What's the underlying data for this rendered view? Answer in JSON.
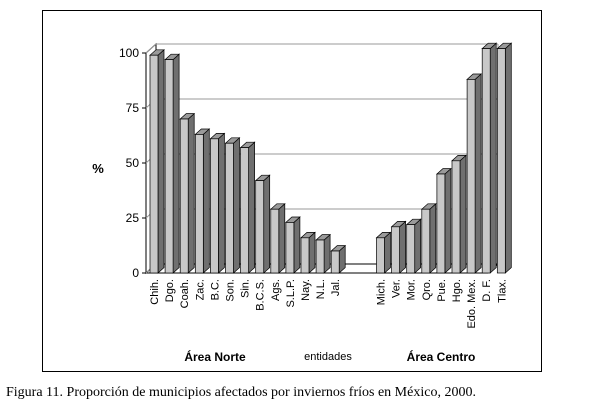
{
  "chart_data": {
    "type": "bar",
    "style": "3d",
    "ylabel": "%",
    "xlabel": "entidades",
    "ylim": [
      0,
      100
    ],
    "yticks": [
      0,
      25,
      50,
      75,
      100
    ],
    "grid": true,
    "groups": [
      {
        "name": "Área Norte",
        "categories": [
          "Chih.",
          "Dgo.",
          "Coah.",
          "Zac.",
          "B.C.",
          "Son.",
          "Sin.",
          "B.C.S.",
          "Ags.",
          "S.L.P.",
          "Nay.",
          "N.L.",
          "Jal."
        ],
        "values": [
          99,
          97,
          70,
          63,
          61,
          59,
          57,
          42,
          29,
          23,
          16,
          15,
          10
        ]
      },
      {
        "name": "Área Centro",
        "categories": [
          "Mich.",
          "Ver.",
          "Mor.",
          "Qro.",
          "Pue.",
          "Hgo.",
          "Edo. Mex.",
          "D. F.",
          "Tlax."
        ],
        "values": [
          16,
          21,
          22,
          29,
          45,
          51,
          88,
          102,
          102
        ]
      }
    ],
    "colors": {
      "bar_front": "#c8c8c8",
      "bar_side": "#6f6f6f",
      "bar_top": "#9a9a9a",
      "grid": "#9a9a9a",
      "axis": "#000000"
    }
  },
  "caption": "Figura 11. Proporción de municipios afectados por inviernos fríos en México, 2000."
}
